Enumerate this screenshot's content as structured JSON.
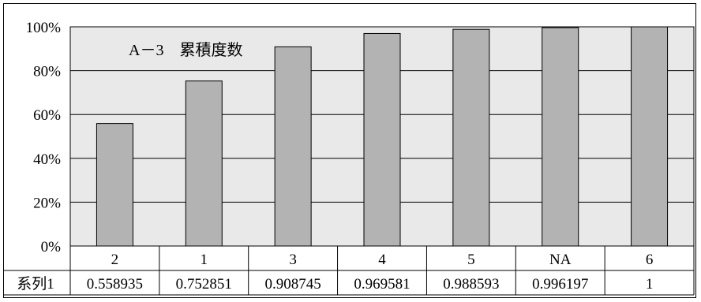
{
  "chart_data": {
    "type": "bar",
    "title": "A－3　累積度数",
    "categories": [
      "2",
      "1",
      "3",
      "4",
      "5",
      "NA",
      "6"
    ],
    "series": [
      {
        "name": "系列1",
        "values": [
          0.558935,
          0.752851,
          0.908745,
          0.969581,
          0.988593,
          0.996197,
          1
        ]
      }
    ],
    "value_labels": [
      "0.558935",
      "0.752851",
      "0.908745",
      "0.969581",
      "0.988593",
      "0.996197",
      "1"
    ],
    "ylim": [
      0,
      1
    ],
    "yticks": [
      0,
      0.2,
      0.4,
      0.6,
      0.8,
      1.0
    ],
    "ytick_labels": [
      "0%",
      "20%",
      "40%",
      "60%",
      "80%",
      "100%"
    ],
    "grid": true,
    "data_table": true,
    "colors": {
      "plot_background": "#e9e9e9",
      "bar_fill": "#b3b3b3",
      "bar_stroke": "#000000",
      "grid": "#000000"
    }
  }
}
